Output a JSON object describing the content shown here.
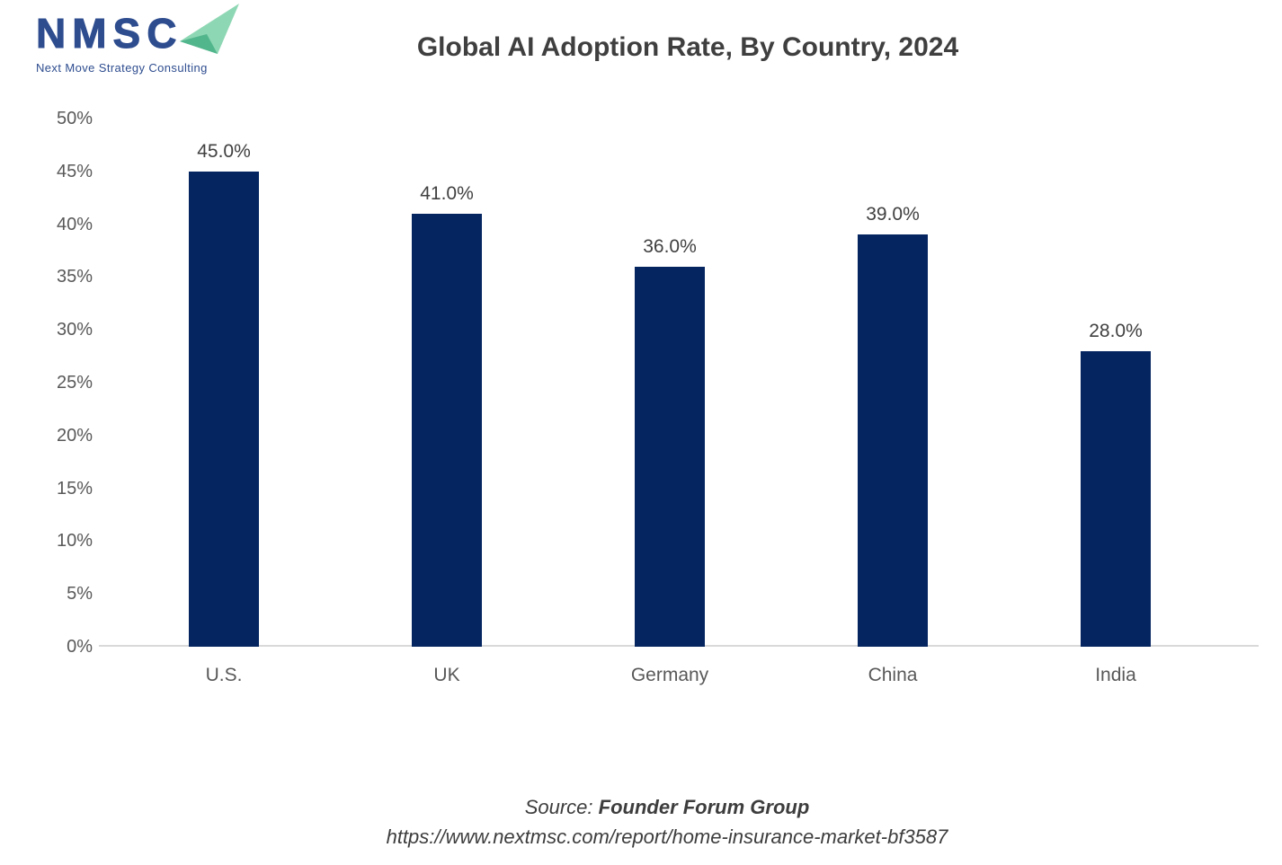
{
  "logo": {
    "acronym": "NMSC",
    "tagline": "Next Move Strategy Consulting",
    "navy": "#2e4d8f",
    "arrow_light": "#8ed7b4",
    "arrow_dark": "#52b68d"
  },
  "header": {
    "title": "Global AI Adoption Rate, By Country, 2024"
  },
  "source": {
    "prefix": "Source: ",
    "name": "Founder Forum Group",
    "url": "https://www.nextmsc.com/report/home-insurance-market-bf3587"
  },
  "chart_data": {
    "type": "bar",
    "title": "Global AI Adoption Rate, By Country, 2024",
    "categories": [
      "U.S.",
      "UK",
      "Germany",
      "China",
      "India"
    ],
    "values": [
      45.0,
      41.0,
      36.0,
      39.0,
      28.0
    ],
    "value_labels": [
      "45.0%",
      "41.0%",
      "36.0%",
      "39.0%",
      "28.0%"
    ],
    "xlabel": "",
    "ylabel": "",
    "ylim": [
      0,
      50
    ],
    "ytick_step": 5,
    "ytick_labels": [
      "0%",
      "5%",
      "10%",
      "15%",
      "20%",
      "25%",
      "30%",
      "35%",
      "40%",
      "45%",
      "50%"
    ],
    "grid": false,
    "legend": false,
    "bar_color": "#052560",
    "axis_line_color": "#d9d9d9",
    "tick_label_color": "#595959",
    "data_label_color": "#404040"
  }
}
